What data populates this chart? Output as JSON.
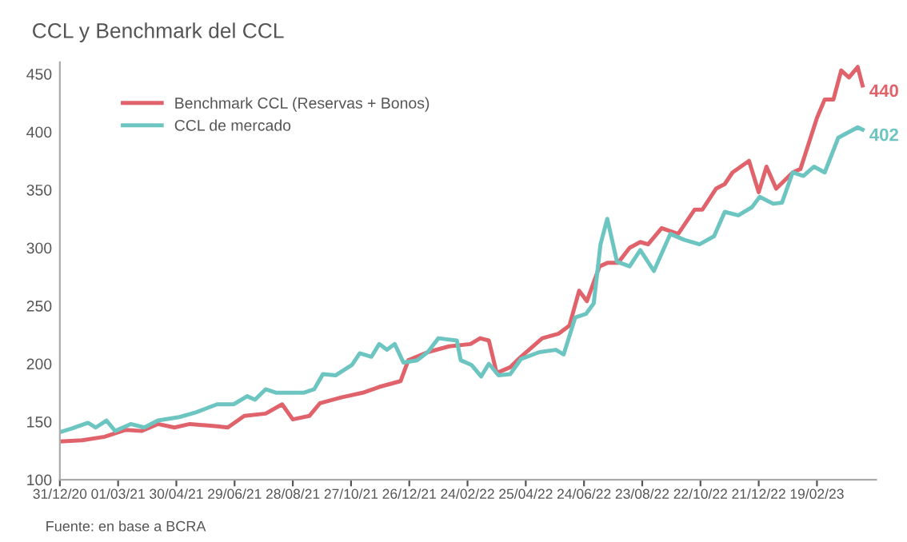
{
  "chart_data": {
    "type": "line",
    "title": "CCL y Benchmark del CCL",
    "series": [
      {
        "name": "Benchmark CCL (Reservas + Bonos)",
        "color": "#e0636b",
        "x": [
          "2020-12-31",
          "2021-01-23",
          "2021-02-15",
          "2021-03-09",
          "2021-03-25",
          "2021-04-11",
          "2021-04-28",
          "2021-05-14",
          "2021-06-11",
          "2021-06-22",
          "2021-07-09",
          "2021-07-31",
          "2021-08-17",
          "2021-08-28",
          "2021-09-14",
          "2021-09-25",
          "2021-10-17",
          "2021-11-08",
          "2021-11-25",
          "2021-12-17",
          "2021-12-25",
          "2022-01-14",
          "2022-02-05",
          "2022-02-27",
          "2022-03-09",
          "2022-03-18",
          "2022-03-26",
          "2022-04-09",
          "2022-04-20",
          "2022-05-12",
          "2022-05-29",
          "2022-06-09",
          "2022-06-19",
          "2022-06-27",
          "2022-07-10",
          "2022-07-18",
          "2022-07-29",
          "2022-08-10",
          "2022-08-21",
          "2022-08-29",
          "2022-09-12",
          "2022-09-29",
          "2022-10-16",
          "2022-10-24",
          "2022-11-07",
          "2022-11-16",
          "2022-11-24",
          "2022-12-11",
          "2022-12-21",
          "2022-12-29",
          "2023-01-08",
          "2023-01-25",
          "2023-02-02",
          "2023-02-19",
          "2023-02-27",
          "2023-03-08",
          "2023-03-16",
          "2023-03-24",
          "2023-04-02",
          "2023-04-07"
        ],
        "values": [
          133,
          134,
          137,
          143,
          142,
          148,
          145,
          148,
          146,
          145,
          155,
          157,
          165,
          152,
          155,
          166,
          171,
          175,
          180,
          185,
          203,
          210,
          215,
          217,
          222,
          220,
          192,
          197,
          206,
          222,
          226,
          233,
          263,
          254,
          284,
          287,
          287,
          300,
          305,
          303,
          317,
          312,
          333,
          333,
          351,
          355,
          365,
          375,
          348,
          370,
          351,
          365,
          368,
          412,
          428,
          428,
          453,
          447,
          456,
          440
        ]
      },
      {
        "name": "CCL de mercado",
        "color": "#6cc5c0",
        "x": [
          "2020-12-31",
          "2021-01-12",
          "2021-01-29",
          "2021-02-06",
          "2021-02-17",
          "2021-02-26",
          "2021-03-14",
          "2021-03-28",
          "2021-04-11",
          "2021-05-03",
          "2021-05-20",
          "2021-06-11",
          "2021-06-28",
          "2021-07-12",
          "2021-07-20",
          "2021-07-31",
          "2021-08-11",
          "2021-09-08",
          "2021-09-19",
          "2021-09-28",
          "2021-10-11",
          "2021-10-28",
          "2021-11-05",
          "2021-11-17",
          "2021-11-25",
          "2021-12-03",
          "2021-12-11",
          "2021-12-20",
          "2022-01-03",
          "2022-01-14",
          "2022-01-25",
          "2022-02-13",
          "2022-02-17",
          "2022-02-28",
          "2022-03-10",
          "2022-03-18",
          "2022-03-28",
          "2022-04-09",
          "2022-04-20",
          "2022-05-09",
          "2022-05-26",
          "2022-06-03",
          "2022-06-15",
          "2022-06-26",
          "2022-07-04",
          "2022-07-11",
          "2022-07-18",
          "2022-07-28",
          "2022-08-10",
          "2022-08-21",
          "2022-09-04",
          "2022-09-21",
          "2022-10-05",
          "2022-10-21",
          "2022-11-05",
          "2022-11-16",
          "2022-11-30",
          "2022-12-14",
          "2022-12-22",
          "2023-01-05",
          "2023-01-14",
          "2023-01-25",
          "2023-02-05",
          "2023-02-16",
          "2023-02-27",
          "2023-03-13",
          "2023-04-02",
          "2023-04-07"
        ],
        "values": [
          141,
          144,
          149,
          145,
          151,
          142,
          148,
          145,
          151,
          154,
          158,
          165,
          165,
          172,
          169,
          178,
          175,
          175,
          178,
          191,
          190,
          199,
          209,
          206,
          217,
          212,
          217,
          201,
          203,
          210,
          222,
          220,
          203,
          199,
          189,
          200,
          190,
          191,
          204,
          210,
          212,
          208,
          240,
          243,
          252,
          303,
          325,
          288,
          284,
          298,
          280,
          312,
          307,
          303,
          310,
          331,
          328,
          335,
          344,
          338,
          339,
          365,
          362,
          370,
          365,
          395,
          404,
          402
        ]
      }
    ],
    "xlim": [
      "2020-12-31",
      "2023-04-21"
    ],
    "xticks": [
      {
        "value": "2020-12-31",
        "label": "31/12/20"
      },
      {
        "value": "2021-03-01",
        "label": "01/03/21"
      },
      {
        "value": "2021-04-30",
        "label": "30/04/21"
      },
      {
        "value": "2021-06-29",
        "label": "29/06/21"
      },
      {
        "value": "2021-08-28",
        "label": "28/08/21"
      },
      {
        "value": "2021-10-27",
        "label": "27/10/21"
      },
      {
        "value": "2021-12-26",
        "label": "26/12/21"
      },
      {
        "value": "2022-02-24",
        "label": "24/02/22"
      },
      {
        "value": "2022-04-25",
        "label": "25/04/22"
      },
      {
        "value": "2022-06-24",
        "label": "24/06/22"
      },
      {
        "value": "2022-08-23",
        "label": "23/08/22"
      },
      {
        "value": "2022-10-22",
        "label": "22/10/22"
      },
      {
        "value": "2022-12-21",
        "label": "21/12/22"
      },
      {
        "value": "2023-02-19",
        "label": "19/02/23"
      }
    ],
    "ylim": [
      100,
      460
    ],
    "yticks": [
      100,
      150,
      200,
      250,
      300,
      350,
      400,
      450
    ],
    "grid": false,
    "legend": "top left",
    "annotations": [
      {
        "text": "440",
        "x": "2023-04-07",
        "y": 440
      },
      {
        "text": "402",
        "x": "2023-04-07",
        "y": 402
      },
      "Fuente: en base a BCRA"
    ]
  }
}
